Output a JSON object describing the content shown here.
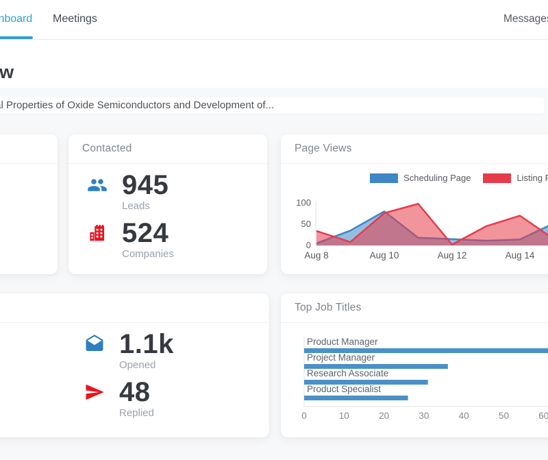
{
  "header": {
    "tabs": [
      {
        "label": "Dashboard",
        "active": true
      },
      {
        "label": "Meetings",
        "active": false
      }
    ],
    "nav_right": "Messages"
  },
  "page": {
    "title": "Overview",
    "subtitle": "Electrical Properties of Oxide Semiconductors and Development of..."
  },
  "cards": {
    "contacted": {
      "title": "Contacted",
      "stats": [
        {
          "icon": "people-icon",
          "value": "945",
          "label": "Leads"
        },
        {
          "icon": "building-icon",
          "value": "524",
          "label": "Companies"
        }
      ]
    },
    "page_views": {
      "title": "Page Views"
    },
    "emails": {
      "stats": [
        {
          "icon": "mail-open-icon",
          "value": "1.1k",
          "label": "Opened"
        },
        {
          "icon": "send-icon",
          "value": "48",
          "label": "Replied"
        }
      ]
    },
    "top_job_titles": {
      "title": "Top Job Titles"
    }
  },
  "colors": {
    "accent_blue": "#2f9ed9",
    "chart_blue": "#3e86c6",
    "chart_red": "#e63c4a",
    "bar_blue": "#4a91c9",
    "icon_blue": "#2e7fc2",
    "icon_red": "#e8151f"
  },
  "chart_data": [
    {
      "type": "area",
      "title": "Page Views",
      "x": [
        "Aug 8",
        "Aug 9",
        "Aug 10",
        "Aug 11",
        "Aug 12",
        "Aug 13",
        "Aug 14",
        "Aug 15"
      ],
      "x_tick_labels": [
        "Aug 8",
        "Aug 10",
        "Aug 12",
        "Aug 14"
      ],
      "ylim": [
        0,
        100
      ],
      "yticks": [
        0,
        50,
        100
      ],
      "grid": false,
      "legend_position": "top-right",
      "series": [
        {
          "name": "Scheduling Page",
          "color": "#3e86c6",
          "values": [
            5,
            35,
            80,
            18,
            15,
            11,
            14,
            52
          ]
        },
        {
          "name": "Listing Page",
          "color": "#e63c4a",
          "values": [
            34,
            8,
            76,
            98,
            2,
            45,
            70,
            15
          ]
        }
      ]
    },
    {
      "type": "bar",
      "orientation": "horizontal",
      "title": "Top Job Titles",
      "categories": [
        "Product Manager",
        "Project Manager",
        "Research Associate",
        "Product Specialist"
      ],
      "values": [
        63,
        36,
        31,
        26
      ],
      "xlim": [
        0,
        69
      ],
      "xticks": [
        0,
        10,
        20,
        30,
        40,
        50,
        60
      ],
      "bar_color": "#4a91c9"
    }
  ]
}
